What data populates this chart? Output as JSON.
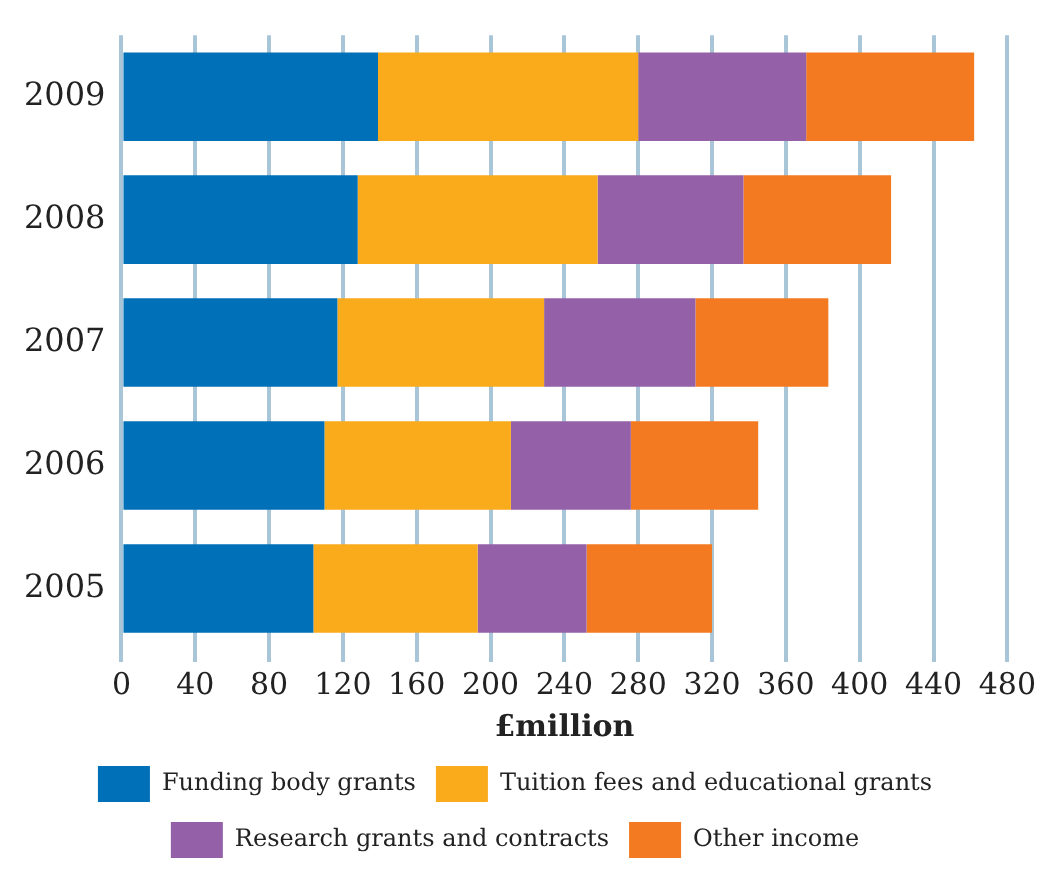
{
  "chart_data": {
    "type": "bar",
    "orientation": "horizontal",
    "stacked": true,
    "xlabel": "£million",
    "categories": [
      "2009",
      "2008",
      "2007",
      "2006",
      "2005"
    ],
    "series": [
      {
        "name": "Funding body grants",
        "color": "#0070b8",
        "values": [
          139,
          128,
          117,
          110,
          104
        ]
      },
      {
        "name": "Tuition fees and educational grants",
        "color": "#f9ab1c",
        "values": [
          141,
          130,
          112,
          101,
          89
        ]
      },
      {
        "name": "Research grants and contracts",
        "color": "#9461a8",
        "values": [
          91,
          79,
          82,
          65,
          59
        ]
      },
      {
        "name": "Other income",
        "color": "#f47a22",
        "values": [
          91,
          80,
          72,
          69,
          68
        ]
      }
    ],
    "xlim": [
      0,
      480
    ],
    "xticks": [
      0,
      40,
      80,
      120,
      160,
      200,
      240,
      280,
      320,
      360,
      400,
      440,
      480
    ],
    "grid": "x",
    "legend": "bottom"
  }
}
